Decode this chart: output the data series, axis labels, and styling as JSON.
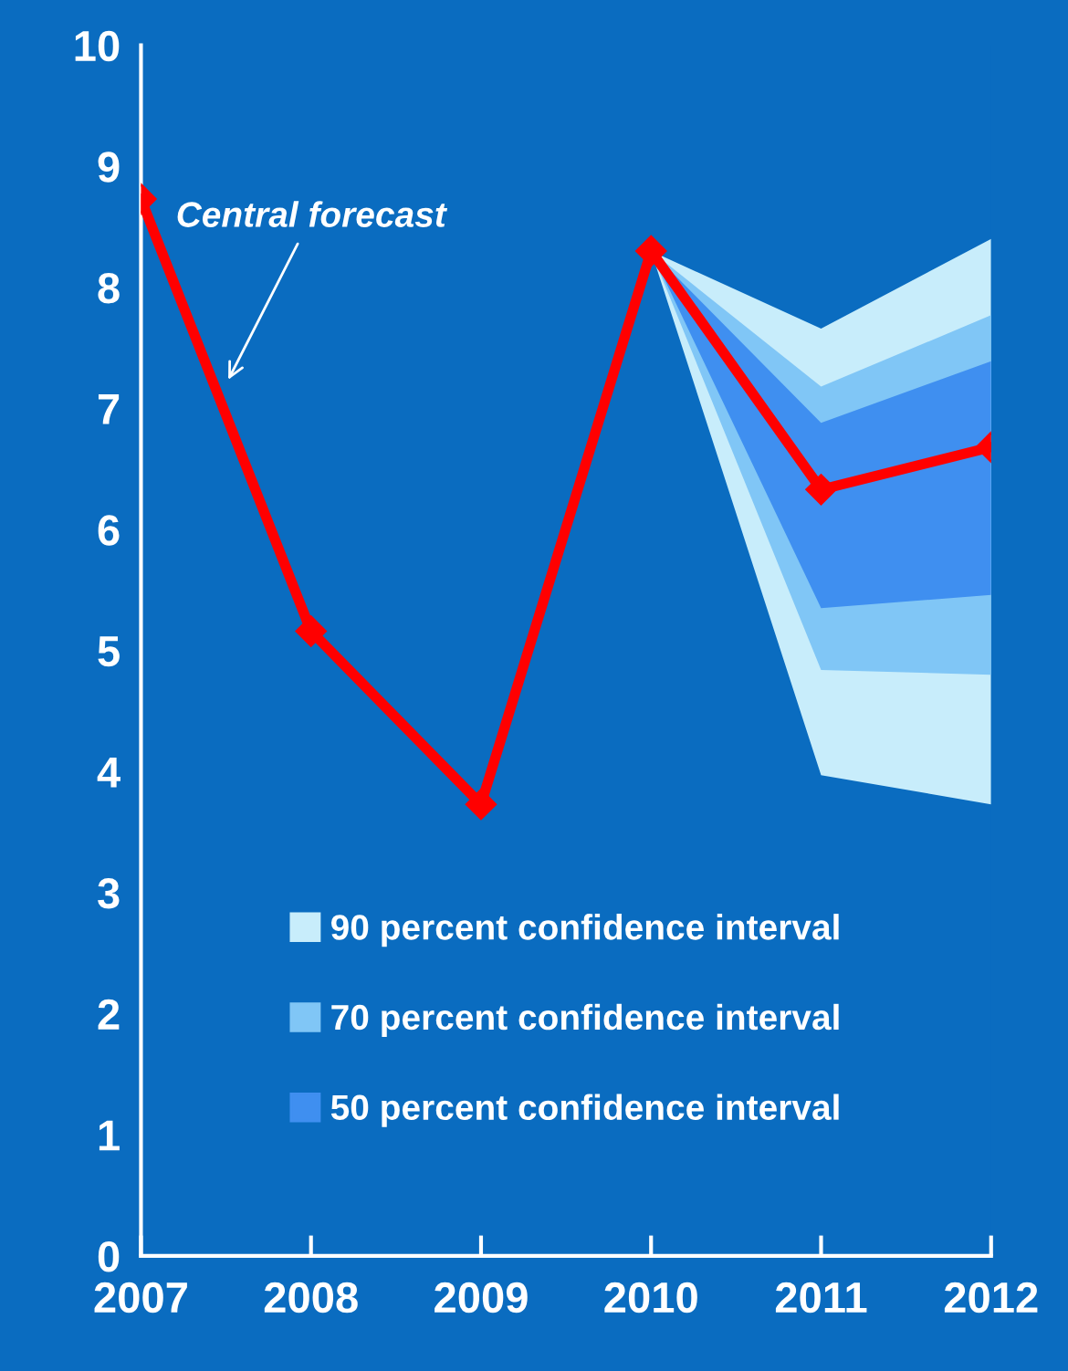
{
  "chart_data": {
    "type": "line",
    "x": [
      2007,
      2008,
      2009,
      2010,
      2011,
      2012
    ],
    "series": [
      {
        "name": "90 percent confidence interval",
        "color": "#c8edfb",
        "x": [
          2010,
          2011,
          2012
        ],
        "values": [
          null,
          null,
          null
        ],
        "lower": [
          8.3,
          3.97,
          3.73
        ],
        "upper": [
          8.3,
          7.66,
          8.4
        ]
      },
      {
        "name": "70 percent confidence interval",
        "color": "#80c6f6",
        "x": [
          2010,
          2011,
          2012
        ],
        "values": [
          null,
          null,
          null
        ],
        "lower": [
          8.3,
          4.84,
          4.8
        ],
        "upper": [
          8.3,
          7.18,
          7.77
        ]
      },
      {
        "name": "50 percent confidence interval",
        "color": "#3f8ff0",
        "x": [
          2010,
          2011,
          2012
        ],
        "values": [
          null,
          null,
          null
        ],
        "lower": [
          8.3,
          5.35,
          5.46
        ],
        "upper": [
          8.3,
          6.88,
          7.39
        ]
      },
      {
        "color": "#ff0000",
        "values": [
          8.73,
          5.16,
          3.73,
          8.3,
          6.33,
          6.68
        ],
        "marker": "diamond"
      }
    ],
    "xlim": [
      2007,
      2012
    ],
    "xticks": [
      2007,
      2008,
      2009,
      2010,
      2011,
      2012
    ],
    "ylim": [
      0,
      10
    ],
    "yticks": [
      0,
      1,
      2,
      3,
      4,
      5,
      6,
      7,
      8,
      9,
      10
    ],
    "annotations": [
      {
        "text": "Central forecast",
        "x": 2007.5,
        "y": 7.2
      }
    ],
    "legend": "bottom",
    "grid": false
  }
}
